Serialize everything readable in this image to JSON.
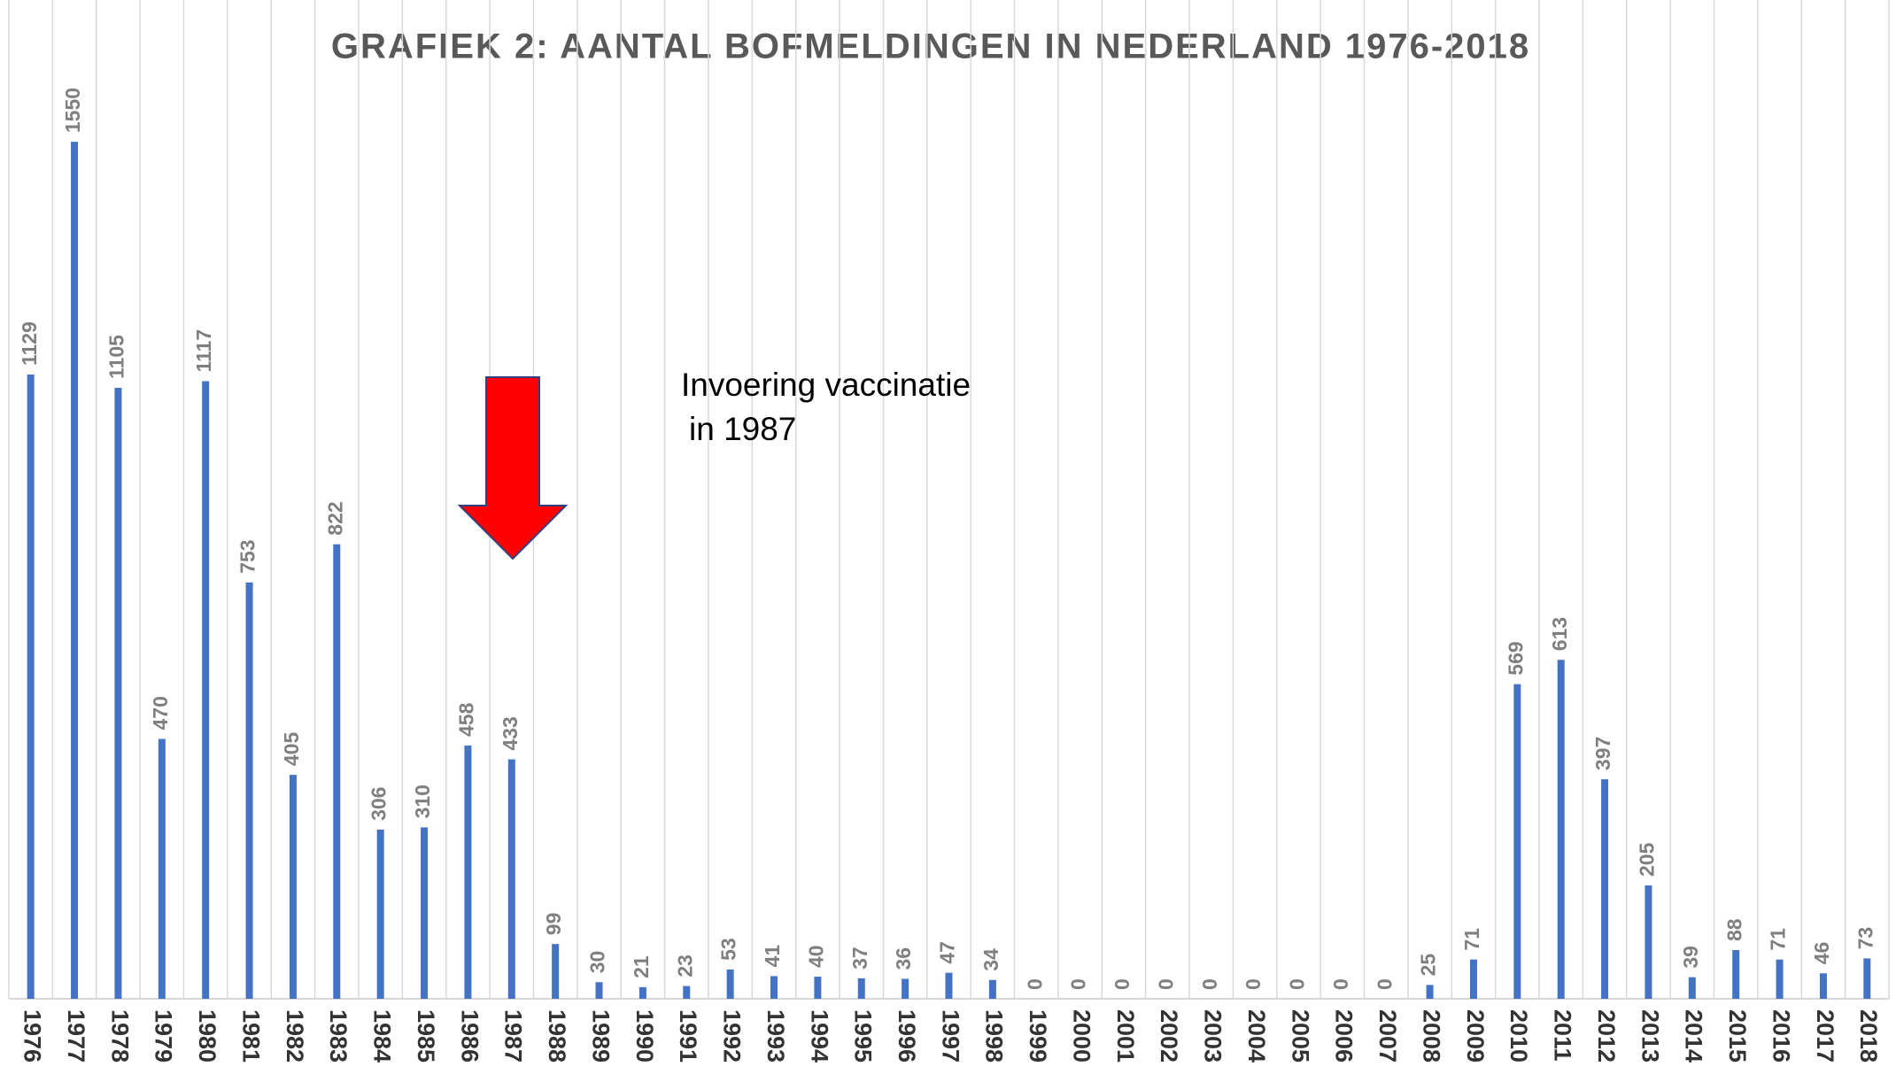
{
  "chart_data": {
    "type": "bar",
    "title": "GRAFIEK 2: AANTAL BOFMELDINGEN IN NEDERLAND 1976-2018",
    "annotation": [
      "Invoering vaccinatie",
      "in 1987"
    ],
    "categories": [
      "1976",
      "1977",
      "1978",
      "1979",
      "1980",
      "1981",
      "1982",
      "1983",
      "1984",
      "1985",
      "1986",
      "1987",
      "1988",
      "1989",
      "1990",
      "1991",
      "1992",
      "1993",
      "1994",
      "1995",
      "1996",
      "1997",
      "1998",
      "1999",
      "2000",
      "2001",
      "2002",
      "2003",
      "2004",
      "2005",
      "2006",
      "2007",
      "2008",
      "2009",
      "2010",
      "2011",
      "2012",
      "2013",
      "2014",
      "2015",
      "2016",
      "2017",
      "2018"
    ],
    "values": [
      1129,
      1550,
      1105,
      470,
      1117,
      753,
      405,
      822,
      306,
      310,
      458,
      433,
      99,
      30,
      21,
      23,
      53,
      41,
      40,
      37,
      36,
      47,
      34,
      0,
      0,
      0,
      0,
      0,
      0,
      0,
      0,
      0,
      25,
      71,
      569,
      613,
      397,
      205,
      39,
      88,
      71,
      46,
      73
    ],
    "color": "#4472c4",
    "ylim": [
      0,
      1800
    ],
    "grid": true
  }
}
